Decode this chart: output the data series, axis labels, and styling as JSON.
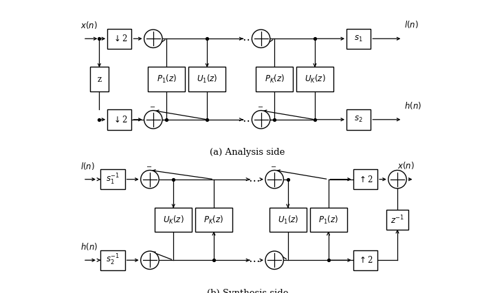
{
  "fig_width": 7.2,
  "fig_height": 4.26,
  "dpi": 100,
  "bg_color": "#ffffff",
  "caption_a": "(a) Analysis side",
  "caption_b": "(b) Synthesis side"
}
